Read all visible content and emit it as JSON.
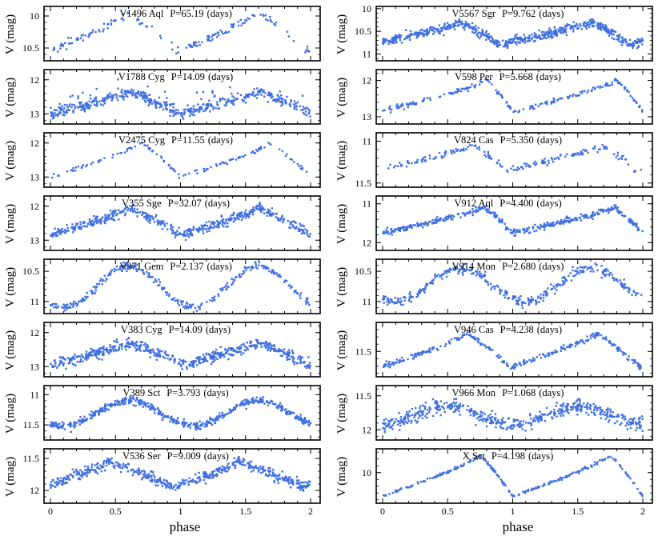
{
  "styles": {
    "point_color": "#3f6fe0",
    "frame_color": "#000000",
    "background": "#ffffff"
  },
  "axis_labels": {
    "x": "phase",
    "y": "V (mag)"
  },
  "x_ticks": [
    "0",
    "0.5",
    "1",
    "1.5",
    "2"
  ],
  "chart_data": [
    {
      "type": "scatter",
      "column": 0,
      "row": 0,
      "star": "V1496 Aql",
      "period": "P=65.19",
      "unit": "(days)",
      "ylim": [
        10.7,
        9.85
      ],
      "yticks": [
        "10",
        "10.5"
      ],
      "ytick_values": [
        10,
        10.5
      ],
      "x_range": [
        0,
        2
      ],
      "curve": {
        "min_phase": 0.98,
        "max_phase": 0.6,
        "bright_mag": 9.95,
        "faint_mag": 10.55,
        "scatter": 0.03,
        "n_points": 180,
        "gap": [
          0.75,
          0.95
        ]
      }
    },
    {
      "type": "scatter",
      "column": 0,
      "row": 1,
      "star": "V1788 Cyg",
      "period": "P=14.09",
      "unit": "(days)",
      "ylim": [
        13.3,
        11.7
      ],
      "yticks": [
        "12",
        "13"
      ],
      "ytick_values": [
        12,
        13
      ],
      "x_range": [
        0,
        2
      ],
      "curve": {
        "min_phase": 1.0,
        "max_phase": 0.6,
        "bright_mag": 12.35,
        "faint_mag": 13.0,
        "scatter": 0.08,
        "n_points": 520,
        "outliers": true
      }
    },
    {
      "type": "scatter",
      "column": 0,
      "row": 2,
      "star": "V2475 Cyg",
      "period": "P=11.55",
      "unit": "(days)",
      "ylim": [
        13.3,
        11.7
      ],
      "yticks": [
        "12",
        "13"
      ],
      "ytick_values": [
        12,
        13
      ],
      "x_range": [
        0,
        2
      ],
      "curve": {
        "min_phase": 1.0,
        "max_phase": 0.7,
        "bright_mag": 12.0,
        "faint_mag": 13.0,
        "scatter": 0.03,
        "n_points": 130
      }
    },
    {
      "type": "scatter",
      "column": 0,
      "row": 3,
      "star": "V355 Sge",
      "period": "P=32.07",
      "unit": "(days)",
      "ylim": [
        13.3,
        11.7
      ],
      "yticks": [
        "12",
        "13"
      ],
      "ytick_values": [
        12,
        13
      ],
      "x_range": [
        0,
        2
      ],
      "curve": {
        "min_phase": 1.0,
        "max_phase": 0.6,
        "bright_mag": 12.05,
        "faint_mag": 12.85,
        "scatter": 0.07,
        "n_points": 520
      }
    },
    {
      "type": "scatter",
      "column": 0,
      "row": 4,
      "star": "V371 Gem",
      "period": "P=2.137",
      "unit": "(days)",
      "ylim": [
        11.2,
        10.3
      ],
      "yticks": [
        "10.5",
        "11"
      ],
      "ytick_values": [
        10.5,
        11
      ],
      "x_range": [
        0,
        2
      ],
      "curve": {
        "sine": true,
        "min_phase": 0.6,
        "bright_mag": 10.42,
        "faint_mag": 11.1,
        "scatter": 0.03,
        "n_points": 300
      }
    },
    {
      "type": "scatter",
      "column": 0,
      "row": 5,
      "star": "V383 Cyg",
      "period": "P=14.09",
      "unit": "(days)",
      "ylim": [
        13.3,
        11.7
      ],
      "yticks": [
        "12",
        "13"
      ],
      "ytick_values": [
        12,
        13
      ],
      "x_range": [
        0,
        2
      ],
      "curve": {
        "min_phase": 1.0,
        "max_phase": 0.6,
        "bright_mag": 12.3,
        "faint_mag": 12.95,
        "scatter": 0.08,
        "n_points": 560
      }
    },
    {
      "type": "scatter",
      "column": 0,
      "row": 6,
      "star": "V389 Sct",
      "period": "P=3.793",
      "unit": "(days)",
      "ylim": [
        11.75,
        10.85
      ],
      "yticks": [
        "11",
        "11.5"
      ],
      "ytick_values": [
        11,
        11.5
      ],
      "x_range": [
        0,
        2
      ],
      "curve": {
        "sine": true,
        "min_phase": 0.6,
        "bright_mag": 11.1,
        "faint_mag": 11.52,
        "scatter": 0.03,
        "n_points": 520
      }
    },
    {
      "type": "scatter",
      "column": 0,
      "row": 7,
      "star": "V536 Ser",
      "period": "P=9.009",
      "unit": "(days)",
      "ylim": [
        12.2,
        11.35
      ],
      "yticks": [
        "11.5",
        "12"
      ],
      "ytick_values": [
        11.5,
        12
      ],
      "x_range": [
        0,
        2
      ],
      "curve": {
        "min_phase": 0.95,
        "max_phase": 0.45,
        "bright_mag": 11.55,
        "faint_mag": 11.95,
        "scatter": 0.04,
        "n_points": 520
      }
    },
    {
      "type": "scatter",
      "column": 1,
      "row": 0,
      "star": "V5567 Sgr",
      "period": "P=9.762",
      "unit": "(days)",
      "ylim": [
        11.15,
        9.95
      ],
      "yticks": [
        "10",
        "10.5",
        "11"
      ],
      "ytick_values": [
        10,
        10.5,
        11
      ],
      "x_range": [
        0,
        2
      ],
      "curve": {
        "min_phase": 0.9,
        "max_phase": 0.6,
        "bright_mag": 10.3,
        "faint_mag": 10.8,
        "scatter": 0.05,
        "n_points": 620
      }
    },
    {
      "type": "scatter",
      "column": 1,
      "row": 1,
      "star": "V598 Per",
      "period": "P=5.668",
      "unit": "(days)",
      "ylim": [
        13.2,
        11.7
      ],
      "yticks": [
        "12",
        "13"
      ],
      "ytick_values": [
        12,
        13
      ],
      "x_range": [
        0,
        2
      ],
      "curve": {
        "min_phase": 1.0,
        "max_phase": 0.8,
        "bright_mag": 12.0,
        "faint_mag": 12.85,
        "scatter": 0.03,
        "n_points": 210
      }
    },
    {
      "type": "scatter",
      "column": 1,
      "row": 2,
      "star": "V824 Cas",
      "period": "P=5.350",
      "unit": "(days)",
      "ylim": [
        11.55,
        10.9
      ],
      "yticks": [
        "11",
        "11.5"
      ],
      "ytick_values": [
        11,
        11.5
      ],
      "x_range": [
        0,
        2
      ],
      "curve": {
        "min_phase": 0.95,
        "max_phase": 0.7,
        "bright_mag": 11.05,
        "faint_mag": 11.35,
        "scatter": 0.02,
        "n_points": 180
      }
    },
    {
      "type": "scatter",
      "column": 1,
      "row": 3,
      "star": "V912 Aql",
      "period": "P=4.400",
      "unit": "(days)",
      "ylim": [
        12.2,
        10.8
      ],
      "yticks": [
        "11",
        "12"
      ],
      "ytick_values": [
        11,
        12
      ],
      "x_range": [
        0,
        2
      ],
      "curve": {
        "min_phase": 1.0,
        "max_phase": 0.78,
        "bright_mag": 11.1,
        "faint_mag": 11.75,
        "scatter": 0.04,
        "n_points": 420
      }
    },
    {
      "type": "scatter",
      "column": 1,
      "row": 4,
      "star": "V914 Mon",
      "period": "P=2.680",
      "unit": "(days)",
      "ylim": [
        11.2,
        10.3
      ],
      "yticks": [
        "10.5",
        "11"
      ],
      "ytick_values": [
        10.5,
        11
      ],
      "x_range": [
        0,
        2
      ],
      "curve": {
        "sine": true,
        "min_phase": 0.6,
        "bright_mag": 10.45,
        "faint_mag": 11.0,
        "scatter": 0.04,
        "n_points": 360
      }
    },
    {
      "type": "scatter",
      "column": 1,
      "row": 5,
      "star": "V946 Cas",
      "period": "P=4.238",
      "unit": "(days)",
      "ylim": [
        11.85,
        11.1
      ],
      "yticks": [
        "11.5"
      ],
      "ytick_values": [
        11.5
      ],
      "x_range": [
        0,
        2
      ],
      "curve": {
        "min_phase": 0.98,
        "max_phase": 0.65,
        "bright_mag": 11.25,
        "faint_mag": 11.72,
        "scatter": 0.02,
        "n_points": 300
      }
    },
    {
      "type": "scatter",
      "column": 1,
      "row": 6,
      "star": "V966 Mon",
      "period": "P=1.068",
      "unit": "(days)",
      "ylim": [
        12.15,
        11.35
      ],
      "yticks": [
        "11.5",
        "12"
      ],
      "ytick_values": [
        11.5,
        12
      ],
      "x_range": [
        0,
        2
      ],
      "curve": {
        "sine": true,
        "min_phase": 0.5,
        "bright_mag": 11.65,
        "faint_mag": 11.92,
        "scatter": 0.05,
        "n_points": 520
      }
    },
    {
      "type": "scatter",
      "column": 1,
      "row": 7,
      "star": "X Sct",
      "period": "P=4.198",
      "unit": "(days)",
      "ylim": [
        10.45,
        9.65
      ],
      "yticks": [
        "10"
      ],
      "ytick_values": [
        10
      ],
      "x_range": [
        0,
        2
      ],
      "curve": {
        "min_phase": 1.0,
        "max_phase": 0.75,
        "bright_mag": 9.75,
        "faint_mag": 10.35,
        "scatter": 0.01,
        "n_points": 260
      }
    }
  ]
}
